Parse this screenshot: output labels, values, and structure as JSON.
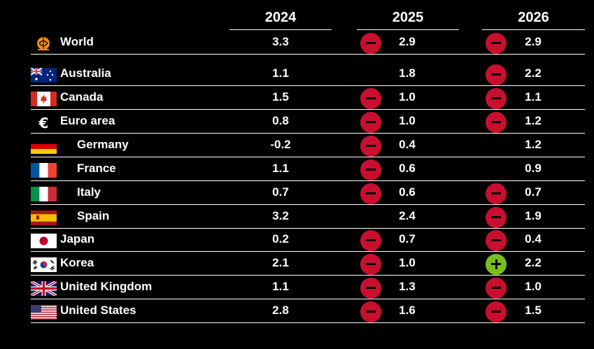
{
  "chart_data": {
    "type": "table",
    "columns": [
      "2024",
      "2025",
      "2026"
    ],
    "rows": [
      {
        "name": "World",
        "icon": "globe-icon",
        "indent": false,
        "v2024": "3.3",
        "v2025": "2.9",
        "c2025": "down",
        "v2026": "2.9",
        "c2026": "down"
      },
      {
        "name": "Australia",
        "icon": "flag-australia-icon",
        "indent": false,
        "v2024": "1.1",
        "v2025": "1.8",
        "c2025": "none",
        "v2026": "2.2",
        "c2026": "down"
      },
      {
        "name": "Canada",
        "icon": "flag-canada-icon",
        "indent": false,
        "v2024": "1.5",
        "v2025": "1.0",
        "c2025": "down",
        "v2026": "1.1",
        "c2026": "down"
      },
      {
        "name": "Euro area",
        "icon": "euro-icon",
        "indent": false,
        "v2024": "0.8",
        "v2025": "1.0",
        "c2025": "down",
        "v2026": "1.2",
        "c2026": "down"
      },
      {
        "name": "Germany",
        "icon": "flag-germany-icon",
        "indent": true,
        "v2024": "-0.2",
        "v2025": "0.4",
        "c2025": "down",
        "v2026": "1.2",
        "c2026": "none"
      },
      {
        "name": "France",
        "icon": "flag-france-icon",
        "indent": true,
        "v2024": "1.1",
        "v2025": "0.6",
        "c2025": "down",
        "v2026": "0.9",
        "c2026": "none"
      },
      {
        "name": "Italy",
        "icon": "flag-italy-icon",
        "indent": true,
        "v2024": "0.7",
        "v2025": "0.6",
        "c2025": "down",
        "v2026": "0.7",
        "c2026": "down"
      },
      {
        "name": "Spain",
        "icon": "flag-spain-icon",
        "indent": true,
        "v2024": "3.2",
        "v2025": "2.4",
        "c2025": "none",
        "v2026": "1.9",
        "c2026": "down"
      },
      {
        "name": "Japan",
        "icon": "flag-japan-icon",
        "indent": false,
        "v2024": "0.2",
        "v2025": "0.7",
        "c2025": "down",
        "v2026": "0.4",
        "c2026": "down"
      },
      {
        "name": "Korea",
        "icon": "flag-korea-icon",
        "indent": false,
        "v2024": "2.1",
        "v2025": "1.0",
        "c2025": "down",
        "v2026": "2.2",
        "c2026": "up"
      },
      {
        "name": "United Kingdom",
        "icon": "flag-uk-icon",
        "indent": false,
        "v2024": "1.1",
        "v2025": "1.3",
        "c2025": "down",
        "v2026": "1.0",
        "c2026": "down"
      },
      {
        "name": "United States",
        "icon": "flag-usa-icon",
        "indent": false,
        "v2024": "2.8",
        "v2025": "1.6",
        "c2025": "down",
        "v2026": "1.5",
        "c2026": "down"
      }
    ],
    "colors": {
      "down": "#c8102e",
      "up": "#78be20",
      "background": "#000000",
      "text": "#ffffff"
    }
  }
}
